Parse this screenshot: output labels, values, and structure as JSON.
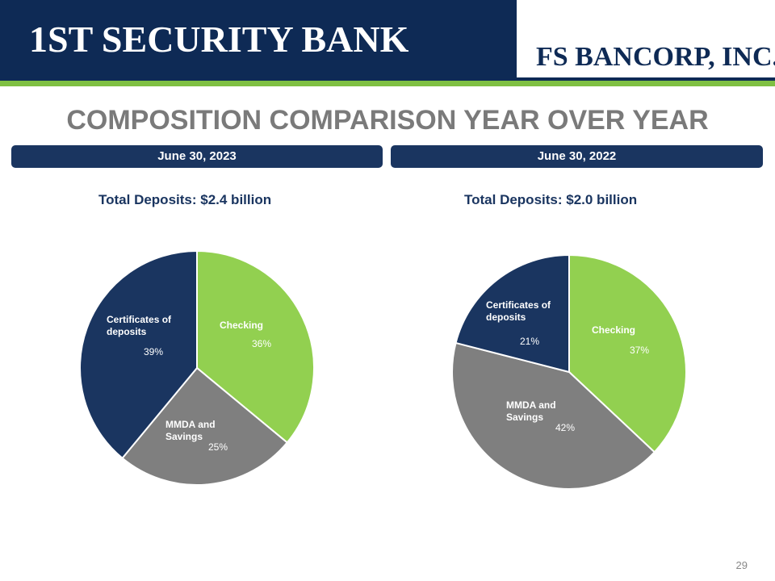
{
  "header": {
    "bank_name": "1ST SECURITY BANK",
    "parent_name": "FS BANCORP, INC."
  },
  "title": "COMPOSITION COMPARISON YEAR OVER YEAR",
  "page_number": "29",
  "colors": {
    "navy": "#1a3560",
    "green": "#92d050",
    "gray": "#7f7f7f"
  },
  "chart_data": [
    {
      "type": "pie",
      "period": "June 30, 2023",
      "title": "Total Deposits:  $2.4 billion",
      "slices": [
        {
          "label": "Checking",
          "value": 36,
          "display": "36%",
          "color": "#92d050"
        },
        {
          "label": "MMDA and Savings",
          "value": 25,
          "display": "25%",
          "color": "#7f7f7f"
        },
        {
          "label": "Certificates of deposits",
          "value": 39,
          "display": "39%",
          "color": "#1a3560"
        }
      ]
    },
    {
      "type": "pie",
      "period": "June 30, 2022",
      "title": "Total Deposits:  $2.0 billion",
      "slices": [
        {
          "label": "Checking",
          "value": 37,
          "display": "37%",
          "color": "#92d050"
        },
        {
          "label": "MMDA and Savings",
          "value": 42,
          "display": "42%",
          "color": "#7f7f7f"
        },
        {
          "label": "Certificates of deposits",
          "value": 21,
          "display": "21%",
          "color": "#1a3560"
        }
      ]
    }
  ]
}
